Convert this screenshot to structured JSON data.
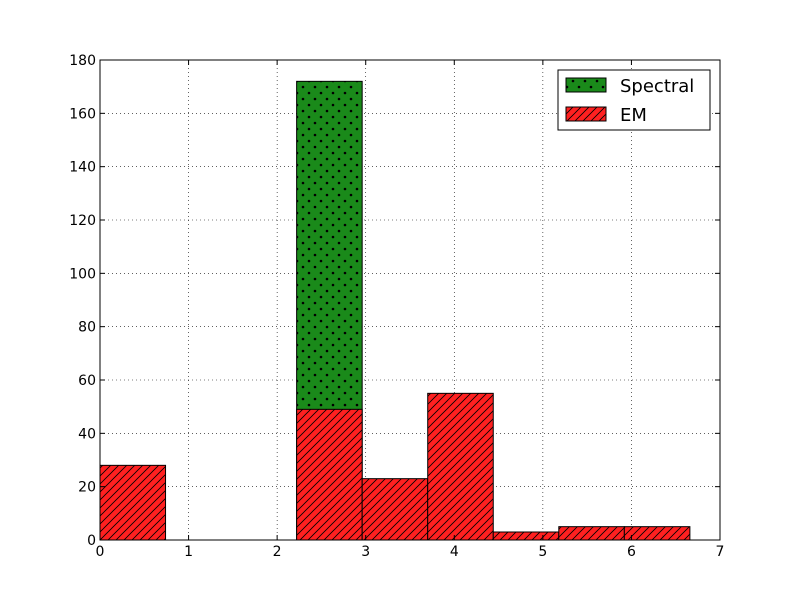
{
  "chart_data": {
    "type": "bar",
    "title": "",
    "xlabel": "",
    "ylabel": "",
    "xlim": [
      0,
      7
    ],
    "ylim": [
      0,
      180
    ],
    "xticks": [
      "0",
      "1",
      "2",
      "3",
      "4",
      "5",
      "6",
      "7"
    ],
    "yticks": [
      "0",
      "20",
      "40",
      "60",
      "80",
      "100",
      "120",
      "140",
      "160",
      "180"
    ],
    "grid": true,
    "legend_position": "top-right",
    "bin_width": 0.74,
    "series": [
      {
        "name": "Spectral",
        "color": "#1a8a1a",
        "hatch": "dots",
        "bars": [
          {
            "x0": 2.22,
            "x1": 2.96,
            "value": 172
          }
        ]
      },
      {
        "name": "EM",
        "color": "#ff2020",
        "hatch": "diagonal",
        "bars": [
          {
            "x0": 0.0,
            "x1": 0.74,
            "value": 28
          },
          {
            "x0": 0.74,
            "x1": 1.48,
            "value": 0
          },
          {
            "x0": 1.48,
            "x1": 2.22,
            "value": 0
          },
          {
            "x0": 2.22,
            "x1": 2.96,
            "value": 49
          },
          {
            "x0": 2.96,
            "x1": 3.7,
            "value": 23
          },
          {
            "x0": 3.7,
            "x1": 4.44,
            "value": 55
          },
          {
            "x0": 4.44,
            "x1": 5.18,
            "value": 3
          },
          {
            "x0": 5.18,
            "x1": 5.92,
            "value": 5
          },
          {
            "x0": 5.92,
            "x1": 6.66,
            "value": 5
          }
        ]
      }
    ]
  }
}
